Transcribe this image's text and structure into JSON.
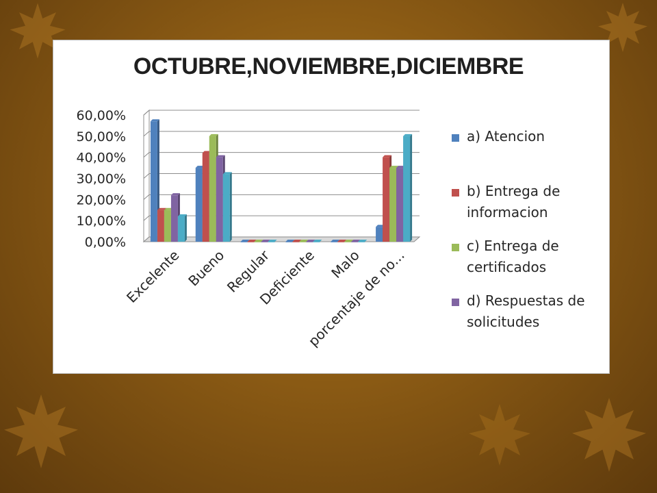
{
  "colors": {
    "bg": "#8a5a14",
    "panel": "#ffffff"
  },
  "chart_data": {
    "type": "bar",
    "title": "OCTUBRE,NOVIEMBRE,DICIEMBRE",
    "xlabel": "",
    "ylabel": "",
    "ylim": [
      0,
      60
    ],
    "ytick_labels": [
      "0,00%",
      "10,00%",
      "20,00%",
      "30,00%",
      "40,00%",
      "50,00%",
      "60,00%"
    ],
    "grid": true,
    "legend_position": "right",
    "categories": [
      "Excelente",
      "Bueno",
      "Regular",
      "Deficiente",
      "Malo",
      "porcentaje de no..."
    ],
    "series": [
      {
        "name": "a) Atencion",
        "color": "#4f81bd",
        "values": [
          57,
          35,
          0,
          0,
          0,
          7
        ]
      },
      {
        "name": "b) Entrega de informacion",
        "color": "#c0504d",
        "values": [
          15,
          42,
          0,
          0,
          0,
          40
        ]
      },
      {
        "name": "c) Entrega de certificados",
        "color": "#9bbb59",
        "values": [
          15,
          50,
          0,
          0,
          0,
          35
        ]
      },
      {
        "name": "d) Respuestas de solicitudes",
        "color": "#8064a2",
        "values": [
          22,
          40,
          0,
          0,
          0,
          35
        ]
      },
      {
        "name": "",
        "color": "#4bacc6",
        "values": [
          12,
          32,
          0,
          0,
          0,
          50
        ]
      }
    ]
  }
}
